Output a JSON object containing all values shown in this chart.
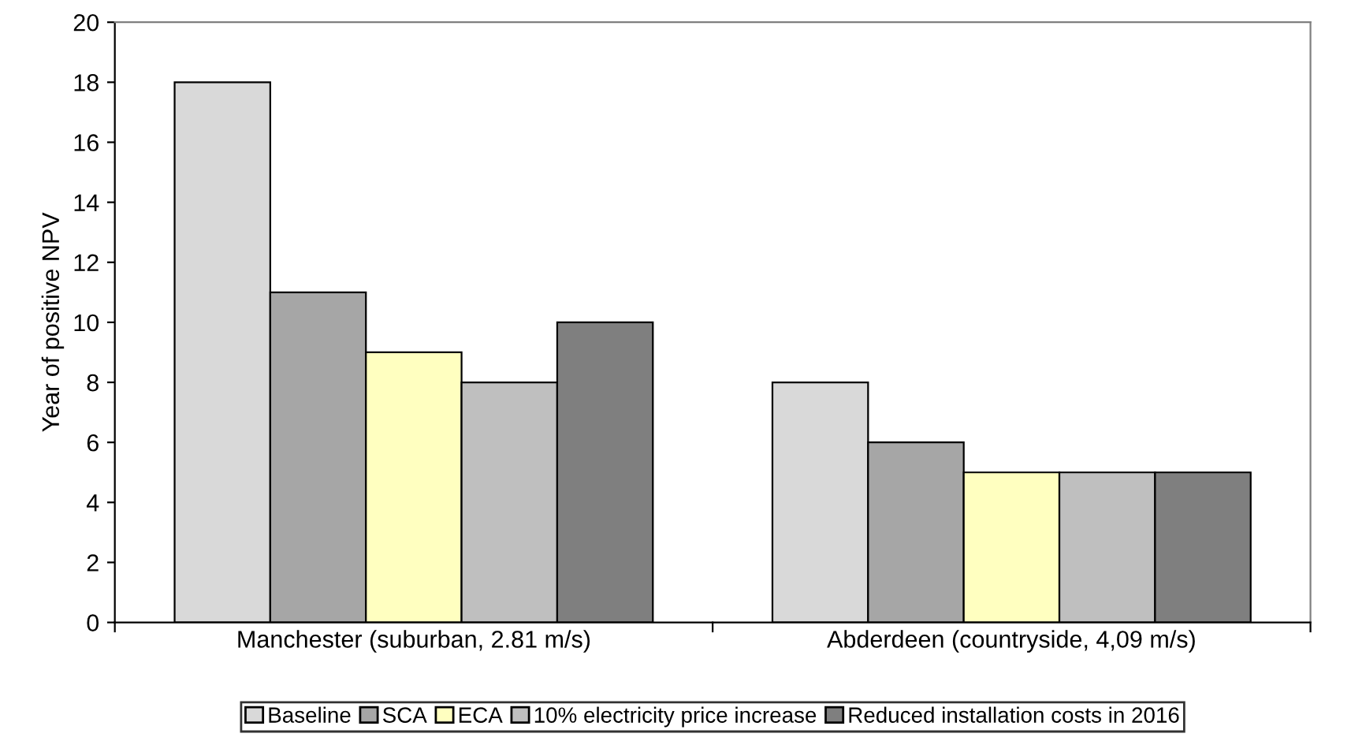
{
  "chart_data": {
    "type": "bar",
    "ylabel": "Year of positive NPV",
    "categories": [
      "Manchester (suburban, 2.81 m/s)",
      "Abderdeen (countryside, 4,09 m/s)"
    ],
    "series": [
      {
        "name": "Baseline",
        "color": "#d9d9d9",
        "values": [
          18,
          8
        ]
      },
      {
        "name": "SCA",
        "color": "#a6a6a6",
        "values": [
          11,
          6
        ]
      },
      {
        "name": "ECA",
        "color": "#ffffc0",
        "values": [
          9,
          5
        ]
      },
      {
        "name": "10% electricity price increase",
        "color": "#bfbfbf",
        "values": [
          8,
          5
        ]
      },
      {
        "name": "Reduced installation costs in 2016",
        "color": "#7f7f7f",
        "values": [
          10,
          5
        ]
      }
    ],
    "ylim": [
      0,
      20
    ],
    "yticks": [
      0,
      2,
      4,
      6,
      8,
      10,
      12,
      14,
      16,
      18,
      20
    ],
    "grid": false,
    "legend": "bottom"
  }
}
